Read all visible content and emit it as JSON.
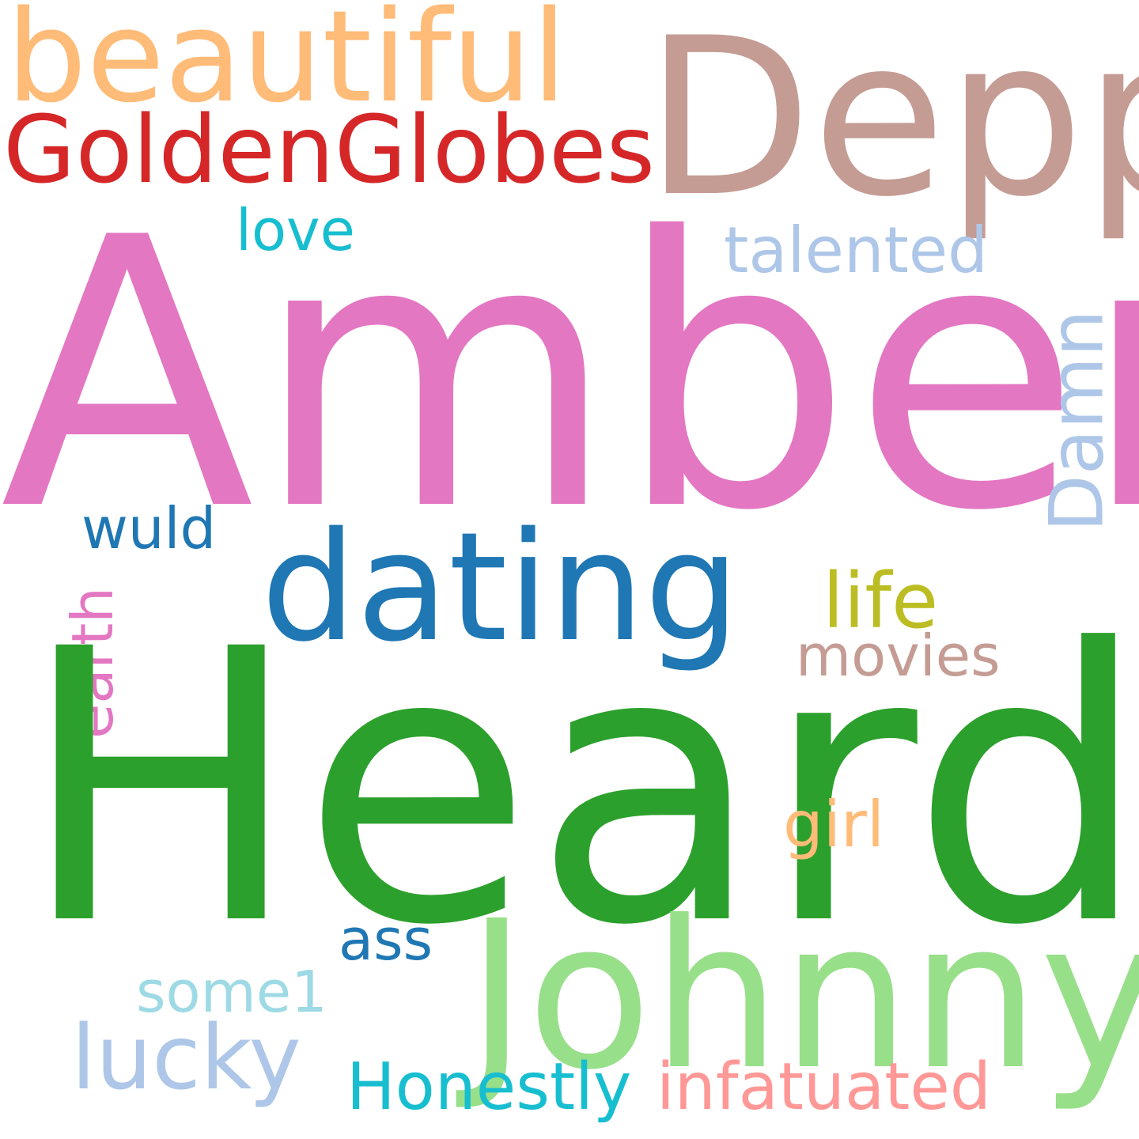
{
  "words": {
    "amber": {
      "text": "Amber",
      "color": "#e377c2"
    },
    "heard": {
      "text": "Heard",
      "color": "#2ca02c"
    },
    "depp": {
      "text": "Depp",
      "color": "#c49c94"
    },
    "beautiful": {
      "text": "beautiful",
      "color": "#ffbb78"
    },
    "goldenglobes": {
      "text": "GoldenGlobes",
      "color": "#d62728"
    },
    "dating": {
      "text": "dating",
      "color": "#1f77b4"
    },
    "johnny": {
      "text": "Johnny",
      "color": "#98df8a"
    },
    "love": {
      "text": "love",
      "color": "#17becf"
    },
    "talented": {
      "text": "talented",
      "color": "#aec7e8"
    },
    "damn": {
      "text": "Damn",
      "color": "#aec7e8"
    },
    "wuld": {
      "text": "wuld",
      "color": "#1f77b4"
    },
    "life": {
      "text": "life",
      "color": "#bcbd22"
    },
    "movies": {
      "text": "movies",
      "color": "#c49c94"
    },
    "earth": {
      "text": "earth",
      "color": "#e377c2"
    },
    "girl": {
      "text": "girl",
      "color": "#ffbb78"
    },
    "ass": {
      "text": "ass",
      "color": "#1f77b4"
    },
    "some1": {
      "text": "some1",
      "color": "#9edae5"
    },
    "lucky": {
      "text": "lucky",
      "color": "#aec7e8"
    },
    "honestly": {
      "text": "Honestly",
      "color": "#17becf"
    },
    "infatuated": {
      "text": "infatuated",
      "color": "#ff9896"
    }
  }
}
